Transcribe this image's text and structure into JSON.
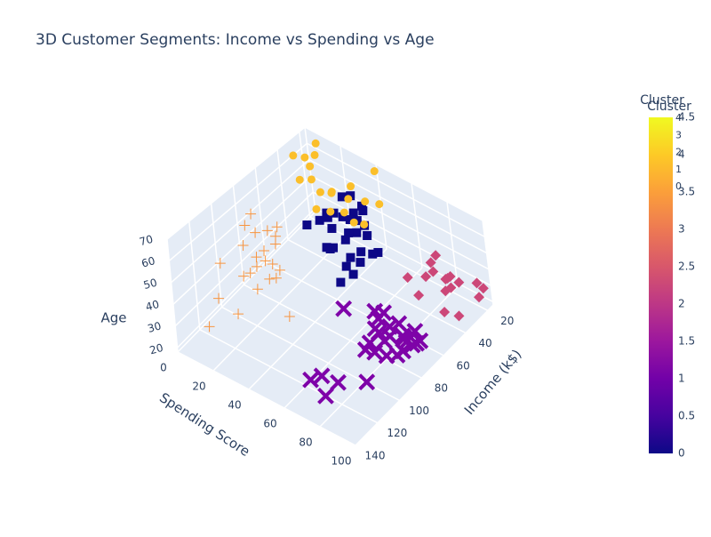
{
  "chart_data": {
    "type": "scatter3d",
    "title": "3D Customer Segments: Income vs Spending vs Age",
    "x_label": "Income (k$)",
    "y_label": "Spending Score",
    "z_label": "Age",
    "xlim": [
      15,
      140
    ],
    "xticks": [
      20,
      40,
      60,
      80,
      100,
      120,
      140
    ],
    "ylim": [
      0,
      100
    ],
    "yticks": [
      0,
      20,
      40,
      60,
      80,
      100
    ],
    "zlim": [
      18,
      70
    ],
    "zticks": [
      20,
      30,
      40,
      50,
      60,
      70
    ],
    "grid": true,
    "series": [
      {
        "cluster": 0,
        "color": "#0d0887",
        "symbol": "square",
        "x": [
          40,
          42,
          43,
          46,
          47,
          48,
          48,
          49,
          50,
          54,
          54,
          54,
          57,
          58,
          59,
          60,
          60,
          61,
          62,
          62,
          63,
          63,
          64,
          65,
          67,
          67,
          69,
          71,
          72,
          76
        ],
        "y": [
          47,
          42,
          50,
          51,
          52,
          59,
          47,
          42,
          49,
          53,
          47,
          60,
          51,
          55,
          41,
          49,
          40,
          42,
          59,
          41,
          50,
          46,
          52,
          43,
          56,
          40,
          58,
          35,
          46,
          55
        ],
        "z": [
          60,
          67,
          49,
          68,
          58,
          47,
          63,
          70,
          54,
          65,
          55,
          50,
          66,
          45,
          57,
          68,
          63,
          48,
          55,
          67,
          43,
          70,
          59,
          50,
          53,
          65,
          46,
          62,
          56,
          44
        ]
      },
      {
        "cluster": 1,
        "color": "#7e03a8",
        "symbol": "x",
        "x": [
          69,
          70,
          71,
          71,
          73,
          73,
          74,
          75,
          76,
          77,
          78,
          78,
          78,
          79,
          81,
          85,
          86,
          87,
          87,
          88,
          93,
          97,
          103,
          113,
          120,
          126,
          137,
          137
        ],
        "y": [
          91,
          77,
          95,
          75,
          73,
          88,
          72,
          93,
          87,
          97,
          74,
          90,
          76,
          83,
          93,
          75,
          95,
          63,
          92,
          86,
          90,
          86,
          85,
          91,
          79,
          74,
          83,
          75
        ],
        "z": [
          32,
          28,
          30,
          35,
          32,
          27,
          36,
          29,
          38,
          33,
          30,
          34,
          29,
          31,
          36,
          27,
          33,
          40,
          30,
          35,
          32,
          34,
          38,
          30,
          28,
          32,
          32,
          36
        ]
      },
      {
        "cluster": 2,
        "color": "#cc4778",
        "symbol": "diamond",
        "x": [
          15,
          16,
          17,
          18,
          19,
          20,
          20,
          21,
          23,
          24,
          25,
          28,
          29,
          30,
          33,
          38,
          39
        ],
        "y": [
          81,
          77,
          76,
          94,
          72,
          77,
          99,
          66,
          98,
          73,
          73,
          82,
          61,
          87,
          92,
          73,
          88
        ],
        "z": [
          21,
          23,
          22,
          30,
          35,
          24,
          31,
          20,
          27,
          29,
          35,
          25,
          22,
          31,
          19,
          24,
          23
        ]
      },
      {
        "cluster": 3,
        "color": "#f89540",
        "symbol": "cross",
        "x": [
          71,
          73,
          74,
          75,
          77,
          78,
          78,
          78,
          81,
          85,
          86,
          87,
          87,
          88,
          93,
          97,
          98,
          99,
          101,
          103,
          113,
          120,
          126,
          137
        ],
        "y": [
          11,
          5,
          10,
          5,
          12,
          22,
          17,
          20,
          5,
          26,
          20,
          27,
          13,
          15,
          14,
          32,
          15,
          39,
          24,
          17,
          8,
          16,
          28,
          18
        ],
        "z": [
          47,
          44,
          32,
          55,
          40,
          58,
          36,
          48,
          52,
          41,
          34,
          60,
          26,
          44,
          38,
          46,
          55,
          31,
          50,
          43,
          33,
          57,
          41,
          36
        ]
      },
      {
        "cluster": 4,
        "color": "#fbbf2a",
        "symbol": "circle",
        "x": [
          15,
          16,
          17,
          18,
          19,
          19,
          20,
          21,
          23,
          24,
          25,
          28,
          28,
          29,
          30,
          33,
          34,
          37,
          38,
          39
        ],
        "y": [
          39,
          6,
          40,
          6,
          3,
          14,
          15,
          35,
          29,
          35,
          5,
          14,
          32,
          31,
          4,
          4,
          14,
          17,
          26,
          35
        ],
        "z": [
          45,
          64,
          67,
          58,
          50,
          40,
          42,
          48,
          55,
          36,
          60,
          46,
          38,
          52,
          49,
          65,
          57,
          43,
          47,
          52
        ]
      }
    ],
    "colorbar": {
      "title": "Cluster",
      "lim": [
        0,
        4.5
      ],
      "ticks": [
        0,
        0.5,
        1,
        1.5,
        2,
        2.5,
        3,
        3.5,
        4,
        4.5
      ],
      "colorscale": [
        "#0d0887",
        "#46039f",
        "#7201a8",
        "#9c179e",
        "#bd3786",
        "#d8576b",
        "#ed7953",
        "#fb9f3a",
        "#fdca26",
        "#f0f921"
      ]
    },
    "colorbar2": {
      "title": "Cluster",
      "lim": [
        0,
        4
      ],
      "ticks": [
        0,
        1,
        2,
        3,
        4
      ]
    }
  }
}
